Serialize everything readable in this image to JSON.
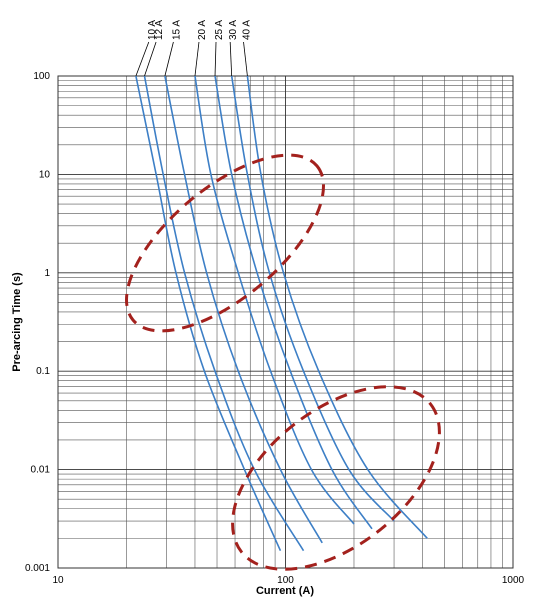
{
  "chart_data": {
    "type": "line",
    "x_label": "Current (A)",
    "y_label": "Pre-arcing Time (s)",
    "log_x": true,
    "log_y": true,
    "grid": true,
    "xlim": [
      10,
      1000
    ],
    "xticks": [
      10,
      100,
      1000
    ],
    "ylim": [
      0.001,
      100
    ],
    "yticks": [
      0.001,
      0.01,
      0.1,
      1,
      10,
      100
    ],
    "series": [
      {
        "name": "10 A",
        "color": "#3d7fc6",
        "x": [
          22,
          27,
          33,
          44,
          66,
          95
        ],
        "values": [
          100,
          10,
          1,
          0.1,
          0.01,
          0.0015
        ]
      },
      {
        "name": "12 A",
        "color": "#3d7fc6",
        "x": [
          24,
          29,
          36,
          49,
          73,
          120
        ],
        "values": [
          100,
          10,
          1,
          0.1,
          0.01,
          0.0015
        ]
      },
      {
        "name": "15 A",
        "color": "#3d7fc6",
        "x": [
          29.5,
          36,
          45,
          62,
          95,
          145
        ],
        "values": [
          100,
          10,
          1,
          0.1,
          0.01,
          0.0018
        ]
      },
      {
        "name": "20 A",
        "color": "#3d7fc6",
        "x": [
          40,
          47,
          62,
          86,
          130,
          200
        ],
        "values": [
          100,
          10,
          1,
          0.1,
          0.01,
          0.0028
        ]
      },
      {
        "name": "25 A",
        "color": "#3d7fc6",
        "x": [
          49,
          58,
          75,
          105,
          160,
          240
        ],
        "values": [
          100,
          10,
          1,
          0.1,
          0.01,
          0.0025
        ]
      },
      {
        "name": "30 A",
        "color": "#3d7fc6",
        "x": [
          58,
          68,
          85,
          120,
          190,
          300
        ],
        "values": [
          100,
          10,
          1,
          0.1,
          0.01,
          0.003
        ]
      },
      {
        "name": "40 A",
        "color": "#3d7fc6",
        "x": [
          68,
          78,
          98,
          140,
          230,
          420
        ],
        "values": [
          100,
          10,
          1,
          0.1,
          0.01,
          0.002
        ]
      }
    ]
  }
}
